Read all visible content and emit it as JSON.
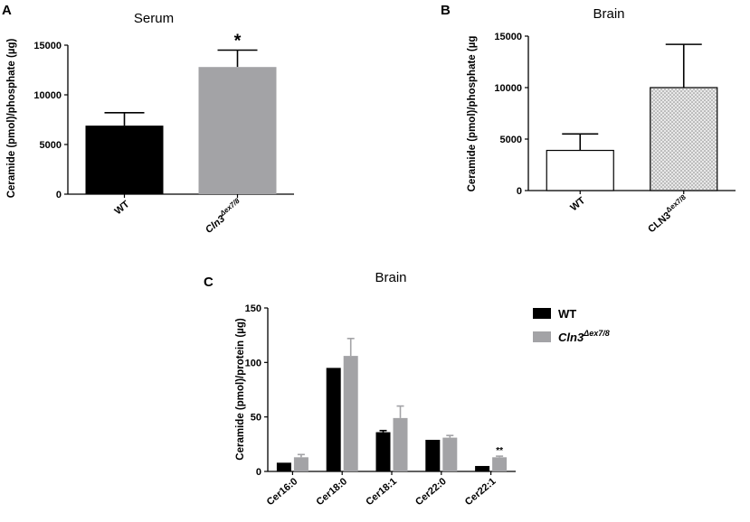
{
  "chart_data": [
    {
      "panel": "A",
      "type": "bar",
      "title": "Serum",
      "ylabel": "Ceramide (pmol)/phosphate (µg)",
      "xlabel": "",
      "ylim": [
        0,
        15000
      ],
      "yticks": [
        0,
        5000,
        10000,
        15000
      ],
      "categories": [
        {
          "base": "WT",
          "sup": ""
        },
        {
          "base": "Cln3",
          "sup": "Δex7/8"
        }
      ],
      "values": [
        6900,
        12800
      ],
      "errors": [
        1300,
        1700
      ],
      "colors": [
        "#000000",
        "#a3a3a6"
      ],
      "significance": [
        "",
        "*"
      ]
    },
    {
      "panel": "B",
      "type": "bar",
      "title": "Brain",
      "ylabel": "Ceramide (pmol)/phosphate (µg",
      "xlabel": "",
      "ylim": [
        0,
        15000
      ],
      "yticks": [
        0,
        5000,
        10000,
        15000
      ],
      "categories": [
        {
          "base": "WT",
          "sup": ""
        },
        {
          "base": "CLN3",
          "sup": "Δex7/8"
        }
      ],
      "values": [
        3900,
        10000
      ],
      "errors": [
        1600,
        4200
      ],
      "colors": [
        "#ffffff",
        "#dcdcdc"
      ],
      "patterns": [
        "none",
        "dots"
      ],
      "significance": [
        "",
        ""
      ]
    },
    {
      "panel": "C",
      "type": "bar",
      "title": "Brain",
      "ylabel": "Ceramide (pmol)/protein (µg)",
      "xlabel": "",
      "ylim": [
        0,
        150
      ],
      "yticks": [
        0,
        50,
        100,
        150
      ],
      "categories": [
        "Cer16:0",
        "Cer18:0",
        "Cer18:1",
        "Cer22:0",
        "Cer22:1"
      ],
      "series": [
        {
          "name": "WT",
          "name_sup": "",
          "color": "#000000",
          "values": [
            8,
            95,
            36,
            29,
            5
          ],
          "errors": [
            0,
            0,
            1.5,
            0,
            0
          ]
        },
        {
          "name": "Cln3",
          "name_sup": "Δex7/8",
          "color": "#a3a3a6",
          "values": [
            13,
            106,
            49,
            31,
            13
          ],
          "errors": [
            2.5,
            16,
            11,
            2,
            1
          ]
        }
      ],
      "significance": [
        "",
        "",
        "",
        "",
        "**"
      ],
      "legend_position": "top-right"
    }
  ]
}
